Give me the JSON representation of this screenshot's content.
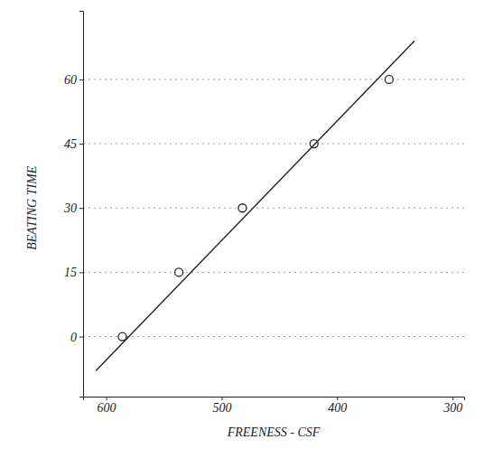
{
  "chart_data": {
    "type": "scatter",
    "x_label": "FREENESS - CSF",
    "y_label": "BEATING TIME",
    "series": [
      {
        "type": "scatter",
        "marker": "circle",
        "color": "#222222",
        "x": [
          586,
          537,
          482,
          420,
          355
        ],
        "values": [
          0,
          15,
          30,
          45,
          60
        ]
      },
      {
        "type": "line",
        "line_style": "solid",
        "color": "#222222",
        "x": [
          609,
          333
        ],
        "values": [
          -8,
          69
        ]
      }
    ],
    "xlim": [
      620,
      290
    ],
    "xticks": [
      600,
      500,
      400,
      300
    ],
    "ylim": [
      -14,
      76
    ],
    "yticks": [
      0,
      15,
      30,
      45,
      60
    ],
    "grid": true
  }
}
